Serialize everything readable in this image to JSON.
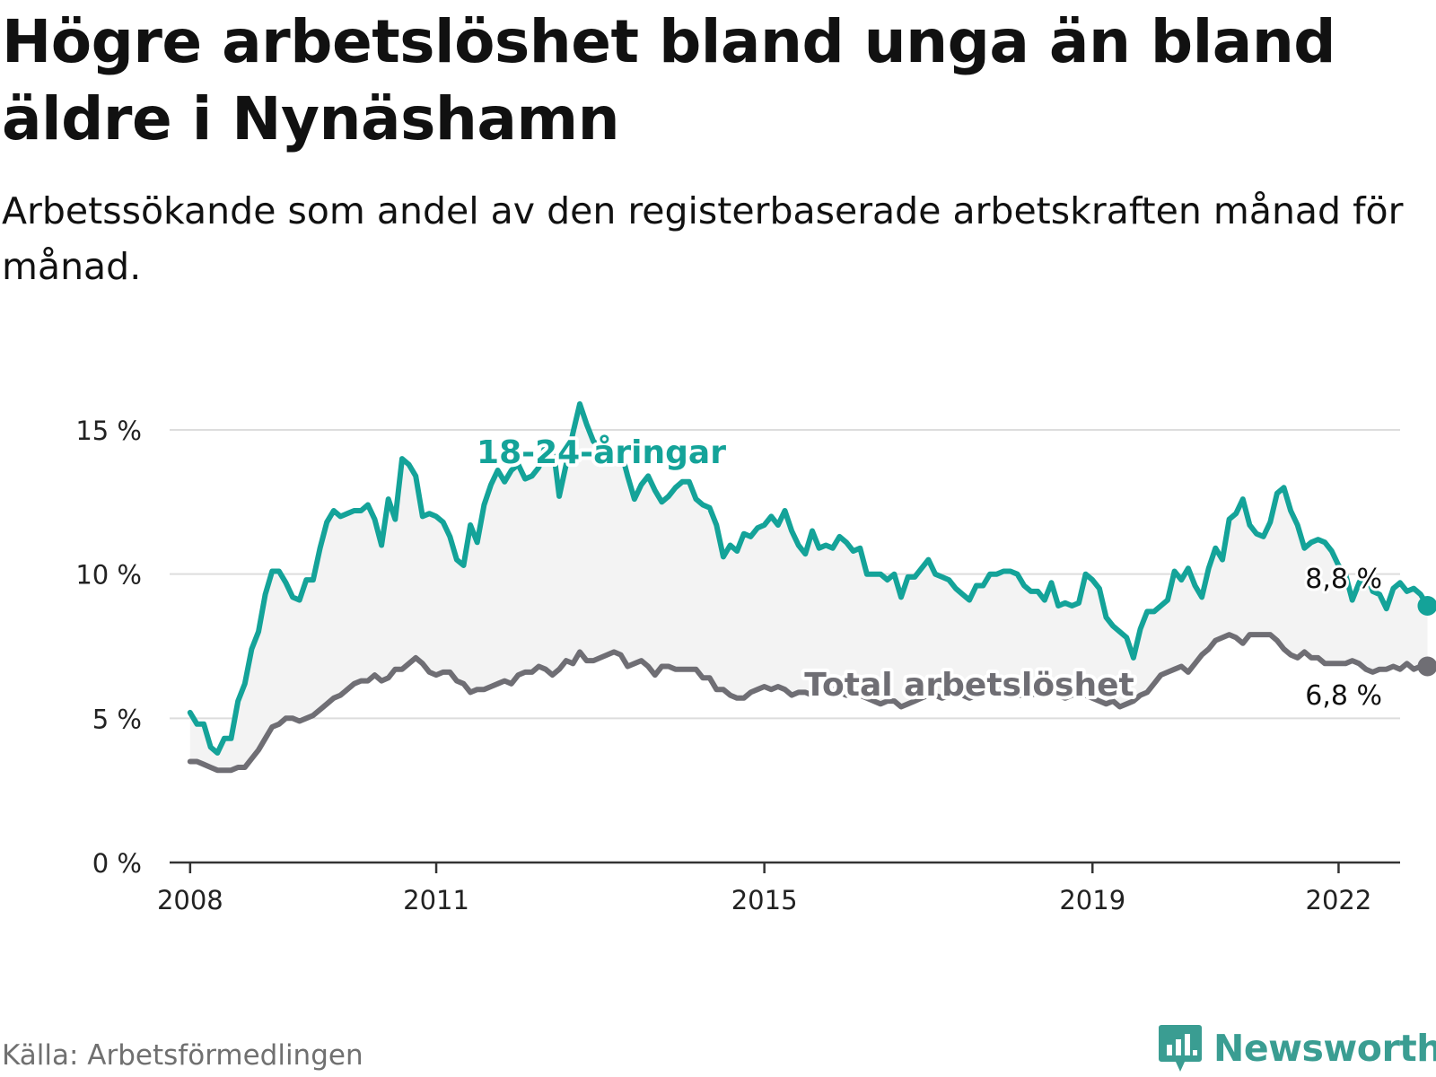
{
  "header": {
    "title": "Högre arbetslöshet bland unga än bland äldre i Nynäshamn",
    "subtitle": "Arbetssökande som andel av den registerbaserade arbetskraften månad för månad."
  },
  "footer": {
    "source": "Källa: Arbetsförmedlingen",
    "brand": "Newsworthy"
  },
  "colors": {
    "youth": "#14a399",
    "total": "#6f6e74",
    "band": "#f3f3f3",
    "grid": "#dddddd",
    "axis": "#333333",
    "brand": "#3a9d92"
  },
  "chart_data": {
    "type": "line",
    "title": "Högre arbetslöshet bland unga än bland äldre i Nynäshamn",
    "ylim": [
      0,
      15
    ],
    "yticks": [
      0,
      5,
      10,
      15
    ],
    "ytick_labels": [
      "0 %",
      "5 %",
      "10 %",
      "15 %"
    ],
    "xlim": [
      2008.0,
      2023.0
    ],
    "xticks": [
      2008.25,
      2011.25,
      2015.25,
      2019.25,
      2022.25
    ],
    "xtick_labels": [
      "2008",
      "2011",
      "2015",
      "2019",
      "2022"
    ],
    "grid": true,
    "x_start": 2008.25,
    "x_step": 0.083333,
    "series": [
      {
        "name": "18-24-åringar",
        "label": "18-24-åringar",
        "end_label": "8,8 %",
        "values": [
          5.2,
          4.8,
          4.8,
          4.0,
          3.8,
          4.3,
          4.3,
          5.6,
          6.2,
          7.4,
          8.0,
          9.3,
          10.1,
          10.1,
          9.7,
          9.2,
          9.1,
          9.8,
          9.8,
          10.9,
          11.8,
          12.2,
          12.0,
          12.1,
          12.2,
          12.2,
          12.4,
          11.9,
          11.0,
          12.6,
          11.9,
          14.0,
          13.8,
          13.4,
          12.0,
          12.1,
          12.0,
          11.8,
          11.3,
          10.5,
          10.3,
          11.7,
          11.1,
          12.4,
          13.1,
          13.6,
          13.2,
          13.6,
          13.8,
          13.3,
          13.4,
          13.7,
          14.5,
          14.6,
          12.7,
          13.8,
          14.9,
          15.9,
          15.2,
          14.6,
          14.5,
          14.1,
          13.9,
          14.3,
          13.4,
          12.6,
          13.1,
          13.4,
          12.9,
          12.5,
          12.7,
          13.0,
          13.2,
          13.2,
          12.6,
          12.4,
          12.3,
          11.7,
          10.6,
          11.0,
          10.8,
          11.4,
          11.3,
          11.6,
          11.7,
          12.0,
          11.7,
          12.2,
          11.5,
          11.0,
          10.7,
          11.5,
          10.9,
          11.0,
          10.9,
          11.3,
          11.1,
          10.8,
          10.9,
          10.0,
          10.0,
          10.0,
          9.8,
          10.0,
          9.2,
          9.9,
          9.9,
          10.2,
          10.5,
          10.0,
          9.9,
          9.8,
          9.5,
          9.3,
          9.1,
          9.6,
          9.6,
          10.0,
          10.0,
          10.1,
          10.1,
          10.0,
          9.6,
          9.4,
          9.4,
          9.1,
          9.7,
          8.9,
          9.0,
          8.9,
          9.0,
          10.0,
          9.8,
          9.5,
          8.5,
          8.2,
          8.0,
          7.8,
          7.1,
          8.1,
          8.7,
          8.7,
          8.9,
          9.1,
          10.1,
          9.8,
          10.2,
          9.6,
          9.2,
          10.2,
          10.9,
          10.5,
          11.9,
          12.1,
          12.6,
          11.7,
          11.4,
          11.3,
          11.8,
          12.8,
          13.0,
          12.2,
          11.7,
          10.9,
          11.1,
          11.2,
          11.1,
          10.8,
          10.3,
          10.0,
          9.1,
          9.7,
          10.1,
          9.4,
          9.3,
          8.8,
          9.5,
          9.7,
          9.4,
          9.5,
          9.3,
          8.9,
          8.8
        ]
      },
      {
        "name": "Total arbetslöshet",
        "label": "Total arbetslöshet",
        "end_label": "6,8 %",
        "values": [
          3.5,
          3.5,
          3.4,
          3.3,
          3.2,
          3.2,
          3.2,
          3.3,
          3.3,
          3.6,
          3.9,
          4.3,
          4.7,
          4.8,
          5.0,
          5.0,
          4.9,
          5.0,
          5.1,
          5.3,
          5.5,
          5.7,
          5.8,
          6.0,
          6.2,
          6.3,
          6.3,
          6.5,
          6.3,
          6.4,
          6.7,
          6.7,
          6.9,
          7.1,
          6.9,
          6.6,
          6.5,
          6.6,
          6.6,
          6.3,
          6.2,
          5.9,
          6.0,
          6.0,
          6.1,
          6.2,
          6.3,
          6.2,
          6.5,
          6.6,
          6.6,
          6.8,
          6.7,
          6.5,
          6.7,
          7.0,
          6.9,
          7.3,
          7.0,
          7.0,
          7.1,
          7.2,
          7.3,
          7.2,
          6.8,
          6.9,
          7.0,
          6.8,
          6.5,
          6.8,
          6.8,
          6.7,
          6.7,
          6.7,
          6.7,
          6.4,
          6.4,
          6.0,
          6.0,
          5.8,
          5.7,
          5.7,
          5.9,
          6.0,
          6.1,
          6.0,
          6.1,
          6.0,
          5.8,
          5.9,
          5.9,
          5.8,
          5.9,
          6.0,
          6.0,
          5.9,
          5.8,
          5.9,
          5.8,
          5.7,
          5.6,
          5.5,
          5.6,
          5.6,
          5.4,
          5.5,
          5.6,
          5.7,
          5.8,
          5.8,
          5.7,
          5.8,
          5.9,
          5.8,
          5.7,
          5.8,
          5.9,
          6.0,
          6.0,
          5.9,
          5.8,
          5.8,
          5.8,
          5.8,
          5.9,
          5.8,
          5.9,
          5.8,
          5.7,
          5.8,
          5.9,
          5.8,
          5.7,
          5.6,
          5.5,
          5.6,
          5.4,
          5.5,
          5.6,
          5.8,
          5.9,
          6.2,
          6.5,
          6.6,
          6.7,
          6.8,
          6.6,
          6.9,
          7.2,
          7.4,
          7.7,
          7.8,
          7.9,
          7.8,
          7.6,
          7.9,
          7.9,
          7.9,
          7.9,
          7.7,
          7.4,
          7.2,
          7.1,
          7.3,
          7.1,
          7.1,
          6.9,
          6.9,
          6.9,
          6.9,
          7.0,
          6.9,
          6.7,
          6.6,
          6.7,
          6.7,
          6.8,
          6.7,
          6.9,
          6.7,
          6.8,
          6.8
        ]
      }
    ]
  }
}
